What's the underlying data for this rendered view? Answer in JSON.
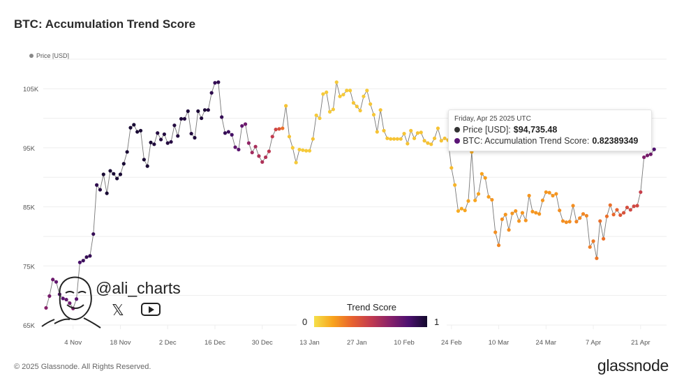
{
  "title": "BTC: Accumulation Trend Score",
  "legend": {
    "price_label": "Price [USD]",
    "price_color": "#888888"
  },
  "tooltip": {
    "date": "Friday, Apr 25 2025 UTC",
    "price_label": "Price [USD]:",
    "price_value": "$94,735.48",
    "score_label": "BTC: Accumulation Trend Score:",
    "score_value": "0.82389349",
    "price_dot_color": "#333333",
    "score_dot_color": "#5a1476"
  },
  "colorbar": {
    "title": "Trend Score",
    "min_label": "0",
    "max_label": "1",
    "colors": [
      "#f5e04a",
      "#f8a31c",
      "#e8632e",
      "#c33b4f",
      "#8a2269",
      "#4d1070",
      "#12092c"
    ]
  },
  "watermark": {
    "handle": "@ali_charts",
    "icons": [
      "x-logo-icon",
      "youtube-icon"
    ]
  },
  "footer": {
    "copyright": "© 2025 Glassnode. All Rights Reserved.",
    "logo": "glassnode"
  },
  "chart_data": {
    "type": "scatter",
    "title": "BTC: Accumulation Trend Score",
    "xlabel": "",
    "ylabel": "",
    "x_start": "2024-10-27",
    "x_end": "2025-04-25",
    "x_step": "1 day",
    "x_ticks": [
      "4 Nov",
      "18 Nov",
      "2 Dec",
      "16 Dec",
      "30 Dec",
      "13 Jan",
      "27 Jan",
      "10 Feb",
      "24 Feb",
      "10 Mar",
      "24 Mar",
      "7 Apr",
      "21 Apr"
    ],
    "y_ticks": [
      "65K",
      "75K",
      "85K",
      "95K",
      "105K"
    ],
    "ylim": [
      65000,
      110000
    ],
    "grid": true,
    "series": [
      {
        "name": "Price [USD]",
        "unit": "K USD",
        "values": [
          67.9,
          69.9,
          72.7,
          72.3,
          70.2,
          69.5,
          69.3,
          68.7,
          67.8,
          69.4,
          75.6,
          75.9,
          76.5,
          76.7,
          80.4,
          88.7,
          87.9,
          90.5,
          87.3,
          91.1,
          90.6,
          89.8,
          90.5,
          92.3,
          94.3,
          98.4,
          98.9,
          97.7,
          97.9,
          93.0,
          91.9,
          95.9,
          95.6,
          97.5,
          96.4,
          97.3,
          95.8,
          96.0,
          98.8,
          97.0,
          99.9,
          99.9,
          101.2,
          97.4,
          96.7,
          101.2,
          100.0,
          101.4,
          101.4,
          104.3,
          106.0,
          106.1,
          100.2,
          97.5,
          97.7,
          97.2,
          95.1,
          94.7,
          98.7,
          99.0,
          95.8,
          94.2,
          95.2,
          93.6,
          92.6,
          93.4,
          94.4,
          96.9,
          98.1,
          98.2,
          98.3,
          102.1,
          96.9,
          95.0,
          92.5,
          94.7,
          94.6,
          94.5,
          94.5,
          96.5,
          100.5,
          100.0,
          104.1,
          104.4,
          101.1,
          101.5,
          106.1,
          103.7,
          104.0,
          104.7,
          104.7,
          102.6,
          102.0,
          101.3,
          103.7,
          104.7,
          102.4,
          100.6,
          97.7,
          101.4,
          97.9,
          96.6,
          96.5,
          96.5,
          96.5,
          96.5,
          97.4,
          95.7,
          97.9,
          96.6,
          97.5,
          97.6,
          96.2,
          95.8,
          95.6,
          96.6,
          98.3,
          96.2,
          96.6,
          96.3,
          91.6,
          88.7,
          84.3,
          84.7,
          84.4,
          86.0,
          94.3,
          86.1,
          87.2,
          90.6,
          89.9,
          86.7,
          86.2,
          80.7,
          78.5,
          82.9,
          83.7,
          81.1,
          83.9,
          84.3,
          82.6,
          84.0,
          82.7,
          86.9,
          84.2,
          84.0,
          83.8,
          86.1,
          87.5,
          87.4,
          86.9,
          87.2,
          84.4,
          82.6,
          82.4,
          82.5,
          85.2,
          82.5,
          83.1,
          83.8,
          83.5,
          78.2,
          79.2,
          76.3,
          82.6,
          79.6,
          83.4,
          85.3,
          83.7,
          84.5,
          83.6,
          84.0,
          84.9,
          84.5,
          85.1,
          85.2,
          87.5,
          93.4,
          93.7,
          93.9,
          94.735
        ]
      },
      {
        "name": "BTC: Accumulation Trend Score",
        "values": [
          0.68,
          0.72,
          0.75,
          0.78,
          0.8,
          0.8,
          0.78,
          0.74,
          0.7,
          0.8,
          0.85,
          0.88,
          0.9,
          0.9,
          0.9,
          0.92,
          0.95,
          0.98,
          0.98,
          0.98,
          0.98,
          0.98,
          0.98,
          0.98,
          0.98,
          0.98,
          0.98,
          0.98,
          0.98,
          0.98,
          0.98,
          0.98,
          0.96,
          0.95,
          0.95,
          0.95,
          0.95,
          0.94,
          0.95,
          0.95,
          0.96,
          0.95,
          0.96,
          0.95,
          0.96,
          0.97,
          0.96,
          0.97,
          0.95,
          0.92,
          0.9,
          0.92,
          0.9,
          0.9,
          0.88,
          0.86,
          0.78,
          0.8,
          0.78,
          0.74,
          0.65,
          0.6,
          0.58,
          0.56,
          0.56,
          0.55,
          0.52,
          0.5,
          0.46,
          0.4,
          0.3,
          0.08,
          0.08,
          0.06,
          0.06,
          0.06,
          0.06,
          0.06,
          0.06,
          0.08,
          0.06,
          0.06,
          0.06,
          0.06,
          0.06,
          0.06,
          0.06,
          0.06,
          0.06,
          0.06,
          0.06,
          0.07,
          0.07,
          0.07,
          0.06,
          0.06,
          0.07,
          0.07,
          0.08,
          0.08,
          0.08,
          0.08,
          0.08,
          0.08,
          0.08,
          0.08,
          0.08,
          0.08,
          0.08,
          0.08,
          0.08,
          0.08,
          0.08,
          0.08,
          0.08,
          0.08,
          0.08,
          0.08,
          0.08,
          0.08,
          0.1,
          0.12,
          0.14,
          0.15,
          0.16,
          0.16,
          0.14,
          0.16,
          0.17,
          0.17,
          0.18,
          0.18,
          0.2,
          0.22,
          0.24,
          0.22,
          0.2,
          0.22,
          0.2,
          0.2,
          0.2,
          0.2,
          0.2,
          0.2,
          0.2,
          0.2,
          0.2,
          0.2,
          0.2,
          0.2,
          0.2,
          0.2,
          0.22,
          0.22,
          0.22,
          0.22,
          0.22,
          0.24,
          0.24,
          0.24,
          0.24,
          0.26,
          0.27,
          0.28,
          0.3,
          0.3,
          0.3,
          0.3,
          0.32,
          0.34,
          0.38,
          0.4,
          0.42,
          0.44,
          0.44,
          0.44,
          0.48,
          0.7,
          0.72,
          0.74,
          0.82389349
        ]
      }
    ]
  }
}
